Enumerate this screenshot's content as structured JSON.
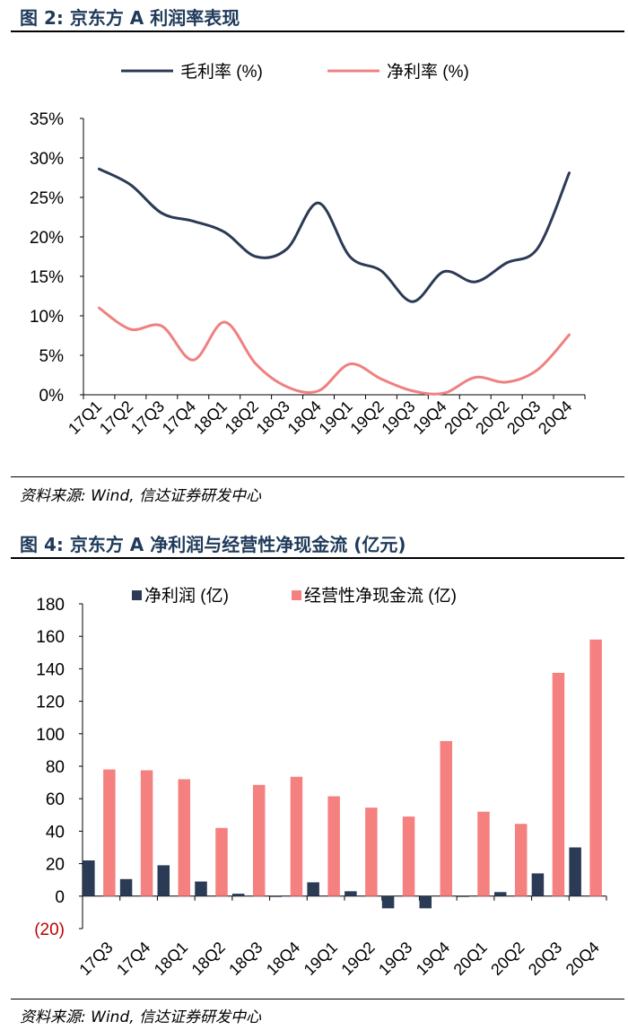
{
  "figure2": {
    "title": "图 2:  京东方 A 利润率表现",
    "source": "资料来源: Wind, 信达证券研发中心"
  },
  "figure4": {
    "title": "图 4:  京东方 A 净利润与经营性净现金流 (亿元)",
    "source": "资料来源: Wind, 信达证券研发中心"
  },
  "colors": {
    "navy": "#2b3a55",
    "salmon": "#f08080",
    "title": "#1f3a5a"
  },
  "chart_data": [
    {
      "type": "line",
      "title": "",
      "categories": [
        "17Q1",
        "17Q2",
        "17Q3",
        "17Q4",
        "18Q1",
        "18Q2",
        "18Q3",
        "18Q4",
        "19Q1",
        "19Q2",
        "19Q3",
        "19Q4",
        "20Q1",
        "20Q2",
        "20Q3",
        "20Q4"
      ],
      "series": [
        {
          "name": "毛利率 (%)",
          "color": "#2b3a55",
          "values": [
            28.6,
            26.6,
            23.0,
            22.0,
            20.6,
            17.5,
            18.5,
            24.3,
            17.5,
            15.7,
            11.8,
            15.6,
            14.3,
            16.7,
            18.6,
            28.1
          ]
        },
        {
          "name": "净利率 (%)",
          "color": "#f08080",
          "values": [
            11.0,
            8.3,
            8.7,
            4.4,
            9.2,
            3.9,
            1.0,
            0.5,
            3.9,
            2.0,
            0.5,
            0.2,
            2.2,
            1.6,
            3.2,
            7.6
          ]
        }
      ],
      "yticks": [
        "0%",
        "5%",
        "10%",
        "15%",
        "20%",
        "25%",
        "30%",
        "35%"
      ],
      "ylim": [
        0,
        35
      ],
      "legend": "top"
    },
    {
      "type": "bar",
      "title": "",
      "categories": [
        "17Q3",
        "17Q4",
        "18Q1",
        "18Q2",
        "18Q3",
        "18Q4",
        "19Q1",
        "19Q2",
        "19Q3",
        "19Q4",
        "20Q1",
        "20Q2",
        "20Q3",
        "20Q4"
      ],
      "series": [
        {
          "name": "净利润 (亿)",
          "color": "#2b3a55",
          "values": [
            22,
            10.5,
            19,
            9,
            1.5,
            -0.5,
            8.5,
            3,
            -7.5,
            -7.5,
            -0.5,
            2.5,
            14,
            30
          ]
        },
        {
          "name": "经营性净现金流 (亿)",
          "color": "#f58080",
          "values": [
            78,
            77.5,
            72,
            42,
            68.5,
            73.5,
            61.5,
            54.5,
            49,
            95.5,
            52,
            44.5,
            137.5,
            158
          ]
        }
      ],
      "yticks": [
        "(20)",
        "0",
        "20",
        "40",
        "60",
        "80",
        "100",
        "120",
        "140",
        "160",
        "180"
      ],
      "ylim": [
        -20,
        180
      ],
      "legend": "top"
    }
  ]
}
